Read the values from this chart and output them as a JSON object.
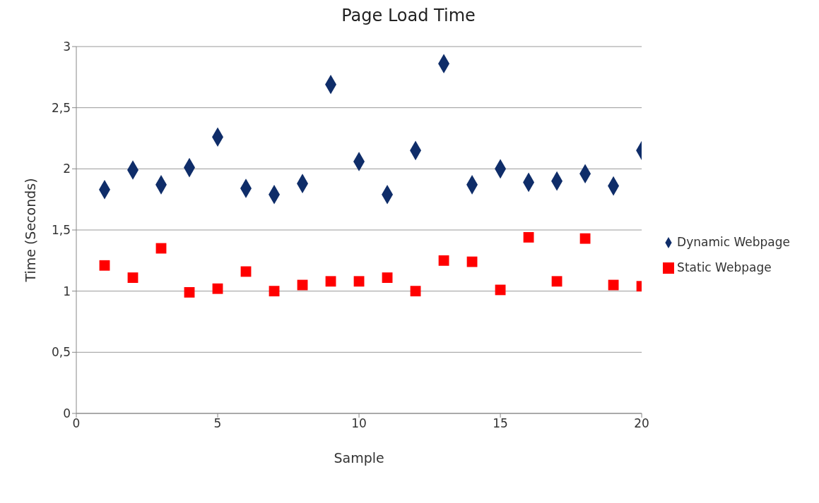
{
  "chart_data": {
    "type": "scatter",
    "title": "Page Load  Time",
    "xlabel": "Sample",
    "ylabel": "Time (Seconds)",
    "x": [
      1,
      2,
      3,
      4,
      5,
      6,
      7,
      8,
      9,
      10,
      11,
      12,
      13,
      14,
      15,
      16,
      17,
      18,
      19,
      20
    ],
    "series": [
      {
        "name": "Static Webpage",
        "color": "#ff0000",
        "marker": "square",
        "values": [
          1.21,
          1.11,
          1.35,
          0.99,
          1.02,
          1.16,
          1.0,
          1.05,
          1.08,
          1.08,
          1.11,
          1.0,
          1.25,
          1.24,
          1.01,
          1.44,
          1.08,
          1.43,
          1.05,
          1.04
        ]
      },
      {
        "name": "Dynamic Webpage",
        "color": "#0f2d69",
        "marker": "diamond",
        "values": [
          1.83,
          1.99,
          1.87,
          2.01,
          2.26,
          1.84,
          1.79,
          1.88,
          2.69,
          2.06,
          1.79,
          2.15,
          2.86,
          1.87,
          2.0,
          1.89,
          1.9,
          1.96,
          1.86,
          2.15
        ]
      }
    ],
    "xlim": [
      0,
      20
    ],
    "xticks": [
      0,
      5,
      10,
      15,
      20
    ],
    "ylim": [
      0,
      3
    ],
    "yticks": [
      0,
      {
        "value": 0.5,
        "label": "0,5"
      },
      1,
      {
        "value": 1.5,
        "label": "1,5"
      },
      2,
      {
        "value": 2.5,
        "label": "2,5"
      },
      3
    ],
    "grid": "y",
    "legend": "right"
  }
}
